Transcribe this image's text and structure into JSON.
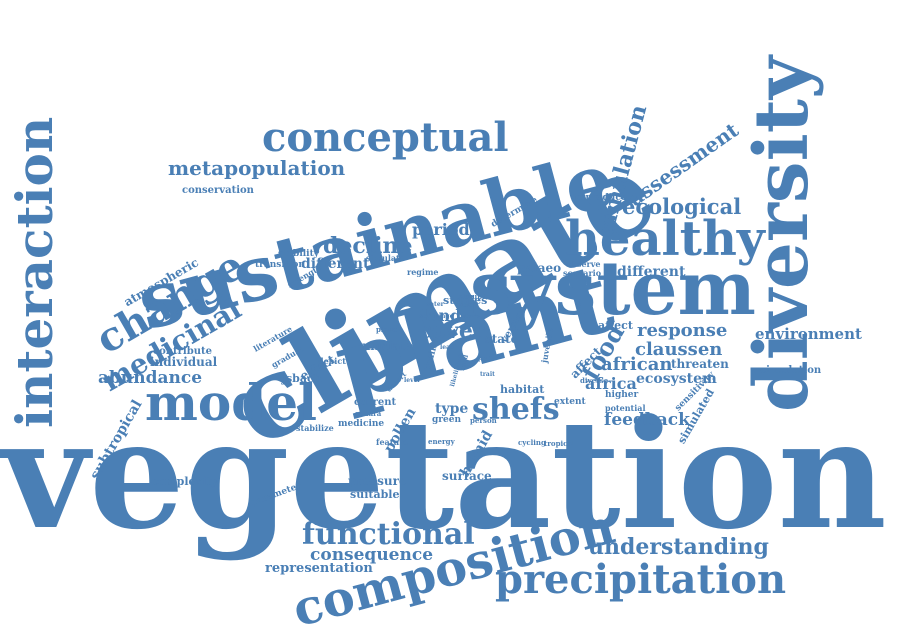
{
  "color": "#4a7fb5",
  "words": {
    "vegetation": "vegetation",
    "climate": "climate",
    "plant": "plant",
    "system": "system",
    "sustainable": "sustainable",
    "diversity": "diversity",
    "interaction": "interaction",
    "composition": "composition",
    "healthy": "healthy",
    "model": "model",
    "precipitation": "precipitation",
    "conceptual": "conceptual",
    "change": "change",
    "functional": "functional",
    "shefs": "shefs",
    "medicinal": "medicinal",
    "understanding": "understanding",
    "decline": "decline",
    "metapopulation": "metapopulation",
    "ecological": "ecological",
    "simulation": "simulation",
    "assessment": "assessment",
    "food": "food",
    "abundance": "abundance",
    "consequence": "consequence",
    "cover": "cover",
    "response": "response",
    "environment": "environment",
    "african": "african",
    "claussen": "claussen",
    "feedback": "feedback",
    "africa": "africa",
    "ecosystem": "ecosystem",
    "period": "period",
    "land": "land",
    "representation": "representation",
    "different_1": "different",
    "different_2": "different",
    "atmospheric": "atmospheric",
    "subtropical": "subtropical",
    "pollen": "pollen",
    "humid": "humid",
    "surface": "surface",
    "pressure": "pressure",
    "suitable": "suitable",
    "complexity": "complexity",
    "type": "type",
    "effect": "effect",
    "individual": "individual",
    "conservation": "conservation",
    "palaeo": "palaeo",
    "threaten": "threaten",
    "circulation": "circulation",
    "simulated": "simulated",
    "sensitivity": "sensitivity",
    "contribute": "contribute",
    "jsbach": "jsbach",
    "miniata": "miniata",
    "studies": "studies",
    "state": "state",
    "current": "current",
    "medicine": "medicine",
    "stabilize": "stabilize",
    "parameter": "parameter",
    "affect_1": "affect",
    "affect_2": "affect",
    "habitat": "habitat",
    "extent": "extent",
    "higher": "higher",
    "potential": "potential",
    "reproduce": "reproduce",
    "determine": "determine",
    "transition": "transition",
    "stability": "stability",
    "simulate": "simulate",
    "strength": "strength",
    "literature": "literature",
    "gradual": "gradual",
    "depict": "depict",
    "scenario": "scenario",
    "observe": "observe",
    "regime": "regime",
    "version": "version",
    "juvenile": "juvenile",
    "timing": "timing",
    "planck": "planck",
    "green": "green",
    "feature": "feature",
    "energy": "energy",
    "cycling": "cycling",
    "tropical": "tropical",
    "sahara": "sahara",
    "desert": "desert",
    "abrupt": "abrupt",
    "water": "water",
    "study": "study",
    "world": "world",
    "range": "range",
    "diverse": "diverse",
    "part": "part",
    "person": "person",
    "future": "future",
    "level": "level",
    "lead": "lead",
    "need": "need",
    "likelihood": "likelihood",
    "trait": "trait"
  }
}
